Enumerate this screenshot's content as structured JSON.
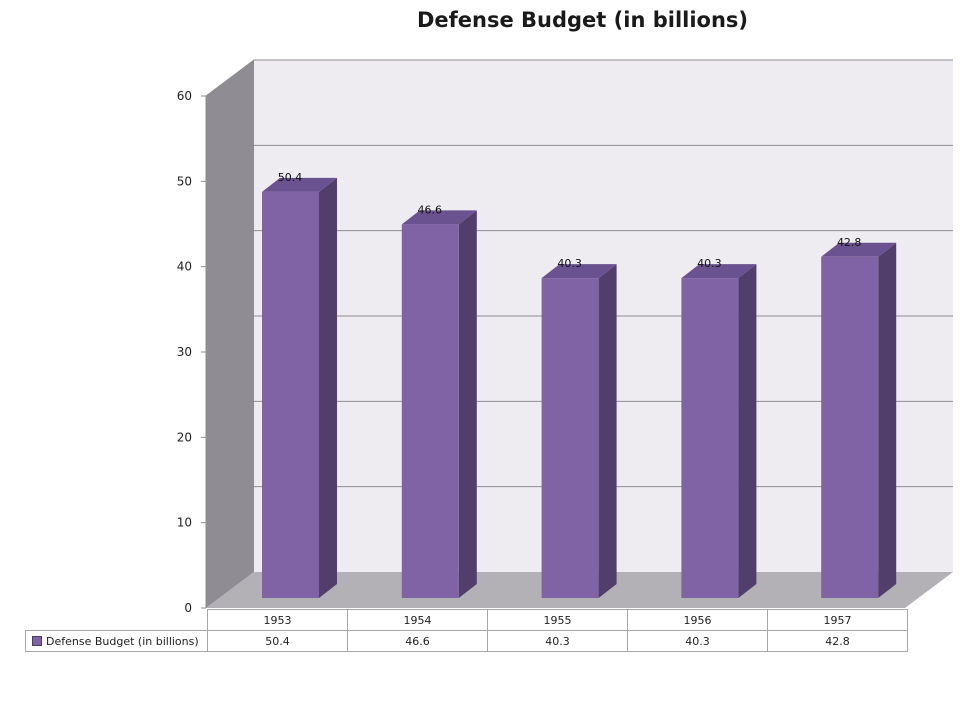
{
  "chart_data": {
    "type": "bar",
    "title": "Defense Budget (in billions)",
    "categories": [
      "1953",
      "1954",
      "1955",
      "1956",
      "1957"
    ],
    "series": [
      {
        "name": "Defense Budget (in billions)",
        "values": [
          50.4,
          46.6,
          40.3,
          40.3,
          42.8
        ]
      }
    ],
    "data_labels": [
      "50.4",
      "46.6",
      "40.3",
      "40.3",
      "42.8"
    ],
    "table_values": [
      "50.4",
      "46.6",
      "40.3",
      "40.3",
      "42.8"
    ],
    "yticks": [
      "0",
      "10",
      "20",
      "30",
      "40",
      "50",
      "60"
    ],
    "ylim": [
      0,
      60
    ],
    "grid": true,
    "legend": "data-table-bottom",
    "style": "3d-column",
    "colors": {
      "bar_front": "#7f63a5",
      "bar_side": "#513e6b",
      "bar_top": "#6a5190",
      "back_wall": "#eeebf1",
      "side_wall": "#8f8c93",
      "floor": "#b3b0b6",
      "gridline": "#8e8e8e"
    }
  }
}
